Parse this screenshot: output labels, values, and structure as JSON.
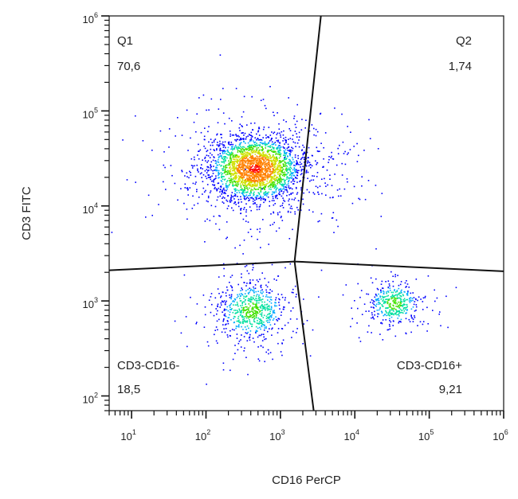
{
  "chart_data": {
    "type": "scatter",
    "subtype": "flow-cytometry-density-dotplot",
    "xlabel": "CD16 PerCP",
    "ylabel": "CD3 FITC",
    "x_scale": "log",
    "y_scale": "log",
    "xlim": [
      5,
      1000000
    ],
    "ylim": [
      70,
      1000000
    ],
    "x_ticks": [
      {
        "base": "10",
        "exp": "1",
        "value": 10
      },
      {
        "base": "10",
        "exp": "2",
        "value": 100
      },
      {
        "base": "10",
        "exp": "3",
        "value": 1000
      },
      {
        "base": "10",
        "exp": "4",
        "value": 10000
      },
      {
        "base": "10",
        "exp": "5",
        "value": 100000
      },
      {
        "base": "10",
        "exp": "6",
        "value": 1000000
      }
    ],
    "y_ticks": [
      {
        "base": "10",
        "exp": "2",
        "value": 100
      },
      {
        "base": "10",
        "exp": "3",
        "value": 1000
      },
      {
        "base": "10",
        "exp": "4",
        "value": 10000
      },
      {
        "base": "10",
        "exp": "5",
        "value": 100000
      },
      {
        "base": "10",
        "exp": "6",
        "value": 1000000
      }
    ],
    "gates": {
      "center": [
        1550,
        2600
      ],
      "top_end": [
        3500,
        1000000
      ],
      "bottom_end": [
        2800,
        70
      ],
      "left_end": [
        5,
        2100
      ],
      "right_end": [
        1000000,
        2050
      ]
    },
    "quadrants": [
      {
        "name": "Q1",
        "percent": "70,6",
        "position": "top-left"
      },
      {
        "name": "Q2",
        "percent": "1,74",
        "position": "top-right"
      },
      {
        "name": "CD3-CD16-",
        "percent": "18,5",
        "position": "bottom-left"
      },
      {
        "name": "CD3-CD16+",
        "percent": "9,21",
        "position": "bottom-right"
      }
    ],
    "populations": [
      {
        "quadrant": "Q1",
        "center_x": 450,
        "center_y": 25000,
        "share": 0.706
      },
      {
        "quadrant": "Q2",
        "center_x": 3500,
        "center_y": 22000,
        "share": 0.0174
      },
      {
        "quadrant": "CD3-CD16-",
        "center_x": 400,
        "center_y": 800,
        "share": 0.185
      },
      {
        "quadrant": "CD3-CD16+",
        "center_x": 33000,
        "center_y": 950,
        "share": 0.0921
      }
    ],
    "colormap": [
      "#0000ff",
      "#00aaff",
      "#00e0a0",
      "#40e000",
      "#d0e000",
      "#ff8000",
      "#ff0000"
    ],
    "grid": false,
    "legend": "none"
  }
}
